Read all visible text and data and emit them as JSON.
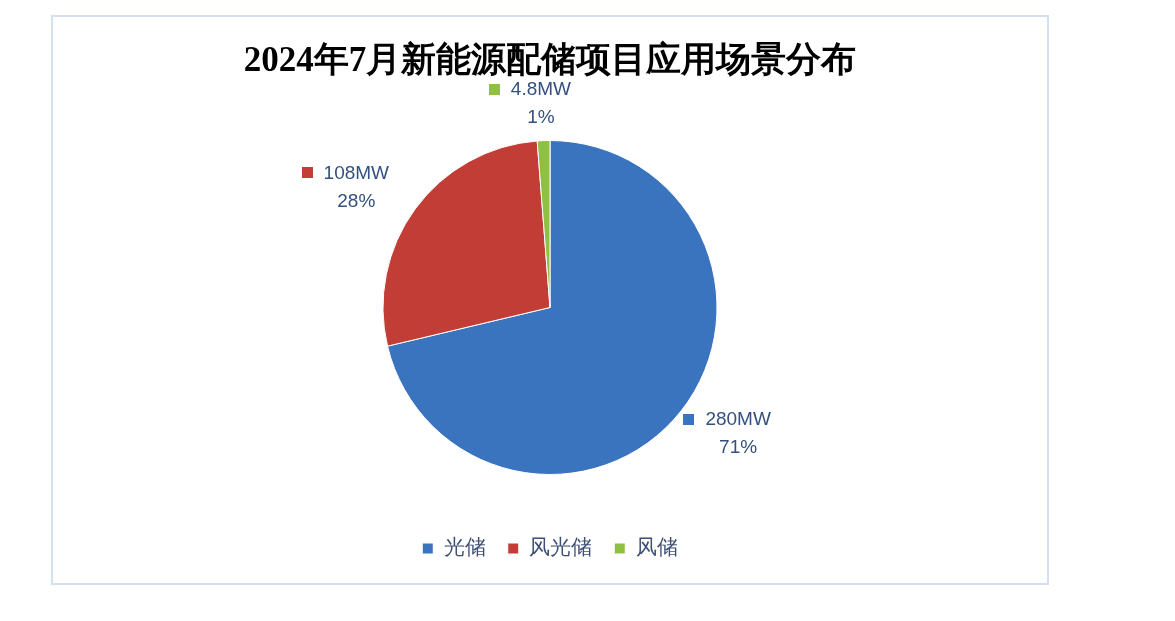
{
  "chart_data": {
    "type": "pie",
    "title": "2024年7月新能源配储项目应用场景分布",
    "categories": [
      "光储",
      "风光储",
      "风储"
    ],
    "values": [
      280,
      108,
      4.8
    ],
    "colors": [
      "#3a73be",
      "#c23d35",
      "#8fbf43"
    ],
    "value_labels": [
      "280MW\n71%",
      "108MW\n28%",
      "4.8MW\n1%"
    ],
    "legend": "bottom"
  }
}
